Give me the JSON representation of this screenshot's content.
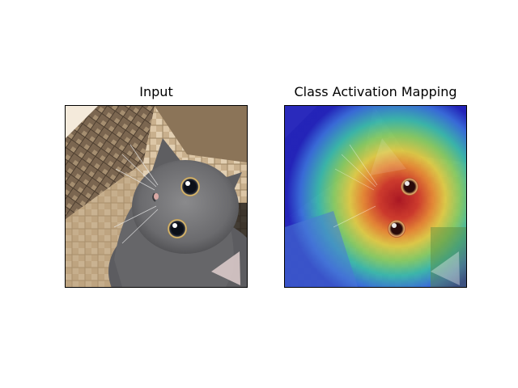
{
  "panels": [
    {
      "title": "Input"
    },
    {
      "title": "Class Activation Mapping"
    }
  ],
  "subject": {
    "fur_color": "#6e6e70",
    "eye_iris_color": "#e8c77a",
    "eye_pupil_color": "#0b0f18",
    "basket_colors": [
      "#f3e6d2",
      "#b29775",
      "#5b4a38"
    ]
  },
  "heatmap": {
    "colormap": "jet",
    "low_color": "#1c1cc8",
    "mid_color": "#32c8a0",
    "high_color": "#d21e1e"
  }
}
